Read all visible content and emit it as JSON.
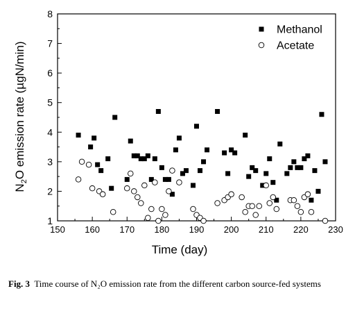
{
  "chart_data": {
    "type": "scatter",
    "xlabel": "Time (day)",
    "ylabel_parts": [
      "N",
      "2",
      "O emission rate (µgN/min)"
    ],
    "xlim": [
      150,
      230
    ],
    "ylim": [
      1,
      8
    ],
    "xticks": [
      "150",
      "160",
      "170",
      "180",
      "190",
      "200",
      "210",
      "220",
      "230"
    ],
    "yticks": [
      "1",
      "2",
      "3",
      "4",
      "5",
      "6",
      "7",
      "8"
    ],
    "legend_position": "top-right",
    "series": [
      {
        "name": "Methanol",
        "marker": "filled-square",
        "color": "#000000",
        "points": [
          [
            156,
            3.9
          ],
          [
            159.5,
            3.5
          ],
          [
            160.5,
            3.8
          ],
          [
            161.5,
            2.9
          ],
          [
            162.5,
            2.7
          ],
          [
            164.5,
            3.1
          ],
          [
            165.5,
            2.1
          ],
          [
            166.5,
            4.5
          ],
          [
            170,
            2.4
          ],
          [
            171,
            3.7
          ],
          [
            172,
            3.2
          ],
          [
            173,
            3.2
          ],
          [
            174,
            3.1
          ],
          [
            175,
            3.1
          ],
          [
            176,
            3.2
          ],
          [
            177,
            2.4
          ],
          [
            178,
            3.1
          ],
          [
            179,
            4.7
          ],
          [
            180,
            2.8
          ],
          [
            181,
            2.4
          ],
          [
            182,
            2.4
          ],
          [
            183,
            1.9
          ],
          [
            184,
            3.4
          ],
          [
            185,
            3.8
          ],
          [
            186,
            2.6
          ],
          [
            187,
            2.7
          ],
          [
            189,
            2.2
          ],
          [
            190,
            4.2
          ],
          [
            191,
            2.7
          ],
          [
            192,
            3.0
          ],
          [
            193,
            3.4
          ],
          [
            196,
            4.7
          ],
          [
            198,
            3.3
          ],
          [
            199,
            2.6
          ],
          [
            200,
            3.4
          ],
          [
            201,
            3.3
          ],
          [
            204,
            3.9
          ],
          [
            205,
            2.5
          ],
          [
            206,
            2.8
          ],
          [
            207,
            2.7
          ],
          [
            209,
            2.2
          ],
          [
            210,
            2.6
          ],
          [
            211,
            3.1
          ],
          [
            212,
            2.3
          ],
          [
            213,
            1.7
          ],
          [
            214,
            3.6
          ],
          [
            216,
            2.6
          ],
          [
            217,
            2.8
          ],
          [
            218,
            3.0
          ],
          [
            219,
            2.8
          ],
          [
            220,
            2.8
          ],
          [
            221,
            3.1
          ],
          [
            222,
            3.2
          ],
          [
            223,
            1.7
          ],
          [
            224,
            2.7
          ],
          [
            225,
            2.0
          ],
          [
            226,
            4.6
          ],
          [
            227,
            3.0
          ]
        ]
      },
      {
        "name": "Acetate",
        "marker": "open-circle",
        "color": "#000000",
        "points": [
          [
            156,
            2.4
          ],
          [
            157,
            3.0
          ],
          [
            159,
            2.9
          ],
          [
            160,
            2.1
          ],
          [
            162,
            2.0
          ],
          [
            163,
            1.9
          ],
          [
            166,
            1.3
          ],
          [
            170,
            2.1
          ],
          [
            171,
            2.6
          ],
          [
            172,
            2.0
          ],
          [
            173,
            1.8
          ],
          [
            174,
            1.6
          ],
          [
            175,
            2.2
          ],
          [
            176,
            1.1
          ],
          [
            177,
            1.4
          ],
          [
            178,
            2.3
          ],
          [
            179,
            1.0
          ],
          [
            180,
            1.4
          ],
          [
            181,
            1.2
          ],
          [
            182,
            2.0
          ],
          [
            183,
            2.7
          ],
          [
            185,
            2.3
          ],
          [
            189,
            1.4
          ],
          [
            190,
            1.2
          ],
          [
            191,
            1.1
          ],
          [
            192,
            1.0
          ],
          [
            196,
            1.6
          ],
          [
            198,
            1.7
          ],
          [
            199,
            1.8
          ],
          [
            200,
            1.9
          ],
          [
            203,
            1.8
          ],
          [
            204,
            1.3
          ],
          [
            205,
            1.5
          ],
          [
            206,
            1.5
          ],
          [
            207,
            1.2
          ],
          [
            208,
            1.5
          ],
          [
            210,
            2.2
          ],
          [
            211,
            1.6
          ],
          [
            212,
            1.8
          ],
          [
            213,
            1.4
          ],
          [
            217,
            1.7
          ],
          [
            218,
            1.7
          ],
          [
            219,
            1.5
          ],
          [
            220,
            1.3
          ],
          [
            221,
            1.8
          ],
          [
            222,
            1.9
          ],
          [
            223,
            1.3
          ],
          [
            227,
            1.0
          ]
        ]
      }
    ]
  },
  "caption": {
    "label": "Fig. 3",
    "text": "Time course of N₂O emission rate from the different carbon source-fed systems"
  }
}
